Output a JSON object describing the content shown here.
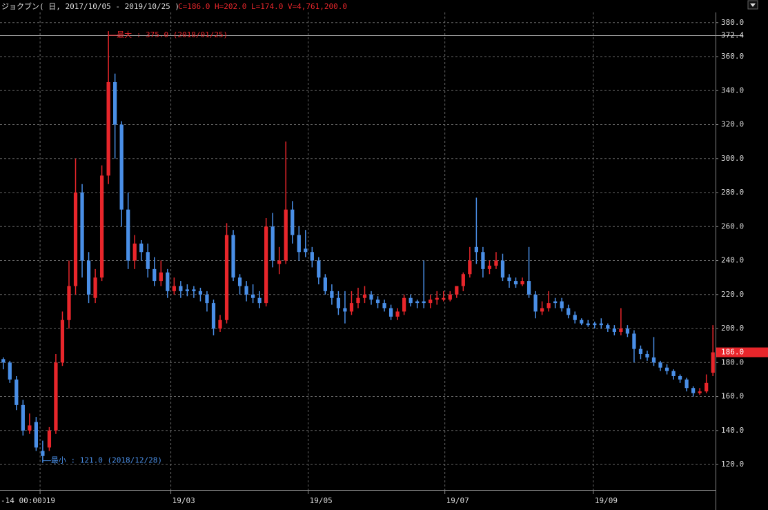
{
  "chart_data": {
    "type": "candlestick",
    "title": "ジョクブン( 日, 2017/10/05 - 2019/10/25 )",
    "subtitle": "C=186.0 H=202.0 L=174.0 V=4,761,200.0",
    "up_color": "#e8262b",
    "down_color": "#4a8fe7",
    "grid": true,
    "open": [
      182,
      180,
      170,
      155,
      140,
      145,
      128,
      130,
      140,
      180,
      205,
      225,
      280,
      240,
      218,
      230,
      290,
      345,
      320,
      270,
      240,
      250,
      245,
      235,
      228,
      233,
      222,
      225,
      223,
      223,
      222,
      220,
      215,
      200,
      205,
      255,
      230,
      225,
      220,
      218,
      215,
      260,
      238,
      240,
      270,
      255,
      247,
      245,
      240,
      230,
      222,
      218,
      212,
      210,
      215,
      218,
      220,
      217,
      215,
      212,
      207,
      210,
      218,
      216,
      216,
      215,
      217,
      217,
      217,
      220,
      225,
      232,
      248,
      245,
      235,
      237,
      240,
      230,
      228,
      226,
      228,
      220,
      210,
      212,
      216,
      216,
      212,
      208,
      205,
      203,
      203,
      203,
      202,
      200,
      198,
      200,
      197,
      188,
      185,
      183,
      180,
      177,
      175,
      172,
      170,
      165,
      162,
      163,
      174
    ],
    "high": [
      183,
      181,
      172,
      158,
      150,
      148,
      134,
      142,
      185,
      210,
      240,
      300,
      285,
      245,
      235,
      296,
      375,
      350,
      322,
      280,
      255,
      252,
      250,
      242,
      240,
      235,
      230,
      228,
      226,
      225,
      224,
      222,
      217,
      208,
      262,
      258,
      232,
      228,
      226,
      222,
      265,
      268,
      248,
      310,
      275,
      260,
      258,
      248,
      242,
      232,
      226,
      222,
      222,
      222,
      224,
      225,
      222,
      219,
      217,
      214,
      212,
      220,
      220,
      217,
      240,
      220,
      222,
      222,
      222,
      225,
      233,
      248,
      277,
      248,
      240,
      245,
      244,
      232,
      230,
      230,
      248,
      222,
      216,
      222,
      218,
      218,
      214,
      210,
      206,
      205,
      204,
      206,
      203,
      202,
      212,
      202,
      199,
      190,
      187,
      195,
      181,
      179,
      176,
      173,
      171,
      166,
      165,
      173,
      202
    ],
    "low": [
      176,
      168,
      152,
      137,
      138,
      128,
      121,
      128,
      138,
      178,
      200,
      220,
      230,
      215,
      215,
      228,
      285,
      300,
      260,
      235,
      235,
      240,
      230,
      225,
      225,
      218,
      220,
      218,
      219,
      218,
      216,
      210,
      196,
      198,
      203,
      228,
      220,
      216,
      215,
      212,
      213,
      236,
      232,
      238,
      250,
      240,
      242,
      236,
      226,
      220,
      214,
      208,
      203,
      208,
      212,
      215,
      214,
      212,
      210,
      205,
      205,
      208,
      213,
      212,
      212,
      212,
      214,
      216,
      216,
      218,
      222,
      230,
      238,
      230,
      232,
      235,
      228,
      224,
      224,
      225,
      218,
      206,
      208,
      210,
      212,
      210,
      206,
      203,
      202,
      201,
      200,
      200,
      198,
      196,
      196,
      195,
      180,
      182,
      181,
      178,
      175,
      173,
      170,
      168,
      163,
      160,
      161,
      162,
      172
    ],
    "close": [
      180,
      170,
      155,
      140,
      143,
      130,
      125,
      140,
      180,
      205,
      225,
      280,
      240,
      220,
      230,
      290,
      345,
      320,
      270,
      240,
      250,
      245,
      235,
      228,
      233,
      222,
      225,
      222,
      222,
      222,
      220,
      215,
      200,
      205,
      255,
      230,
      225,
      220,
      218,
      215,
      260,
      240,
      240,
      270,
      255,
      245,
      245,
      240,
      230,
      222,
      218,
      212,
      210,
      215,
      218,
      220,
      217,
      215,
      212,
      207,
      210,
      218,
      215,
      215,
      215,
      217,
      218,
      218,
      220,
      225,
      232,
      240,
      245,
      235,
      237,
      240,
      230,
      228,
      226,
      228,
      220,
      210,
      212,
      215,
      215,
      212,
      208,
      205,
      203,
      202,
      202,
      202,
      200,
      198,
      200,
      197,
      188,
      185,
      183,
      180,
      177,
      175,
      172,
      170,
      165,
      162,
      163,
      168,
      186
    ],
    "xlim": [
      -0.5,
      108.4
    ],
    "ylim": [
      105,
      386
    ],
    "yticks": [
      {
        "value": 120,
        "label": "120.0"
      },
      {
        "value": 140,
        "label": "140.0"
      },
      {
        "value": 160,
        "label": "160.0"
      },
      {
        "value": 180,
        "label": "180.0"
      },
      {
        "value": 200,
        "label": "200.0"
      },
      {
        "value": 220,
        "label": "220.0"
      },
      {
        "value": 240,
        "label": "240.0"
      },
      {
        "value": 260,
        "label": "260.0"
      },
      {
        "value": 280,
        "label": "280.0"
      },
      {
        "value": 300,
        "label": "300.0"
      },
      {
        "value": 320,
        "label": "320.0"
      },
      {
        "value": 340,
        "label": "340.0"
      },
      {
        "value": 360,
        "label": "360.0"
      },
      {
        "value": 380,
        "label": "380.0"
      }
    ],
    "xticks": [
      {
        "value": 5.6,
        "label": "019"
      },
      {
        "value": 25.5,
        "label": "19/03"
      },
      {
        "value": 46.4,
        "label": "19/05"
      },
      {
        "value": 67.2,
        "label": "19/07"
      },
      {
        "value": 89.8,
        "label": "19/09"
      }
    ],
    "cursor_label": "-14 00:00",
    "ref_line": {
      "value": 372.4,
      "label": "372.4"
    },
    "last_price": {
      "value": 186,
      "label": "186.0"
    },
    "max_annotation": {
      "index": 16,
      "value": 375,
      "label": "最大 : 375.0 (2018/01/25)"
    },
    "min_annotation": {
      "index": 6,
      "value": 121,
      "label": "最小 : 121.0 (2018/12/28)"
    }
  }
}
